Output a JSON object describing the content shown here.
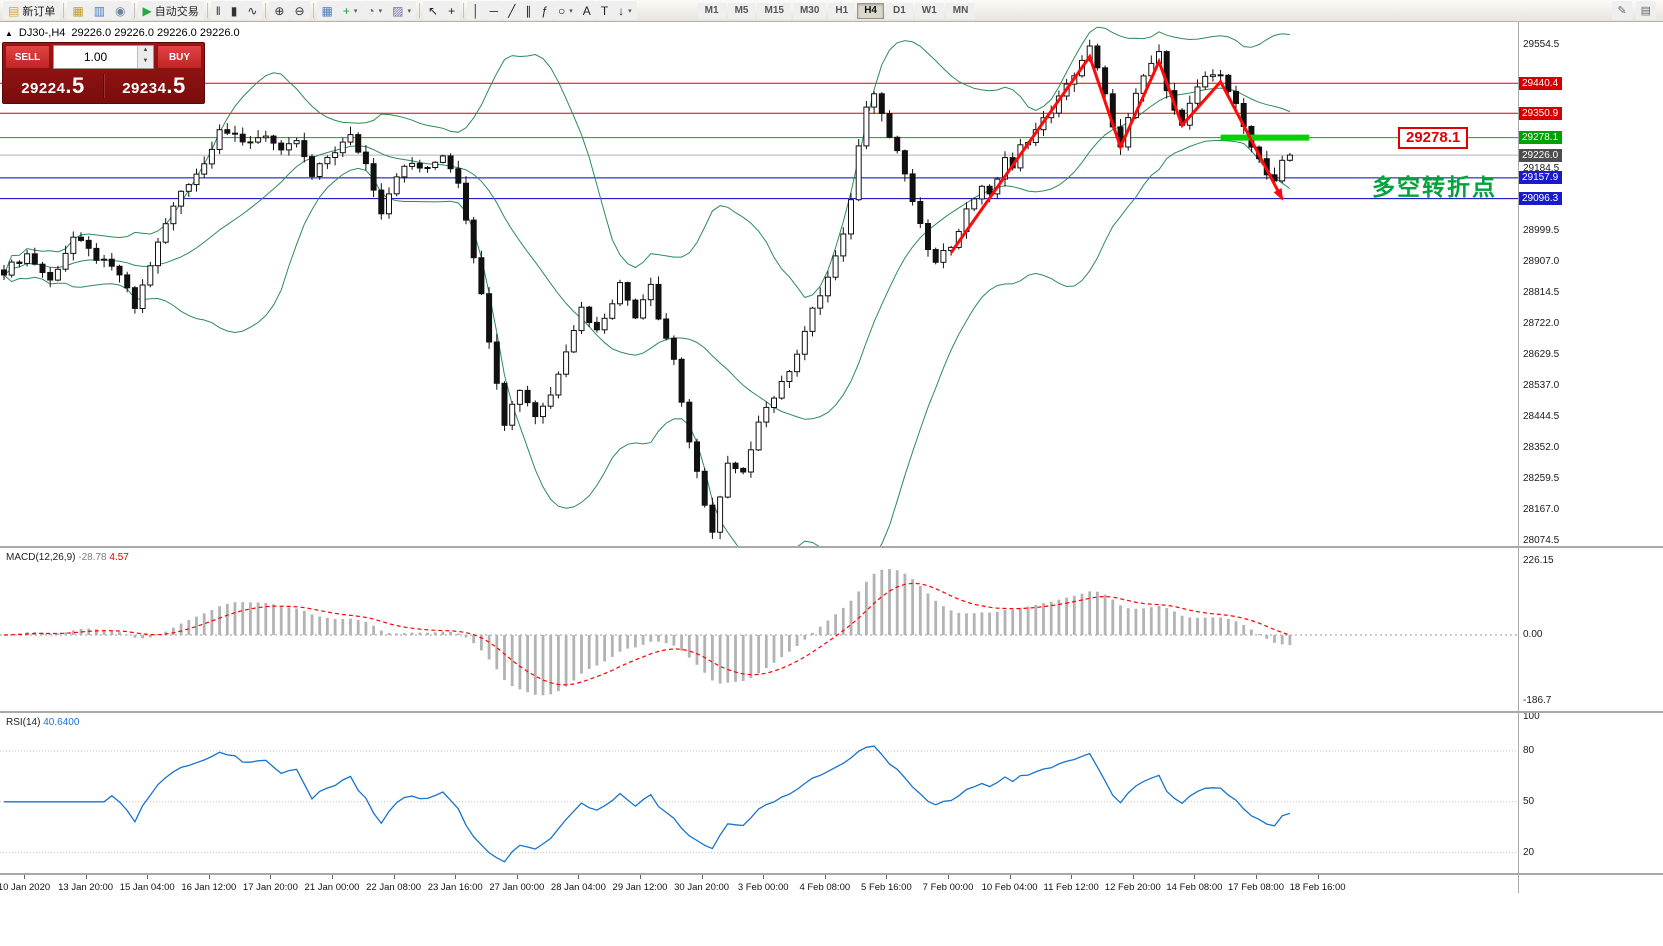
{
  "toolbar": {
    "groups": [
      [
        {
          "name": "new-order-button",
          "glyph": "▤",
          "glyph_color": "#d9a62e",
          "label": "新订单"
        }
      ],
      [
        {
          "name": "charts-icon",
          "glyph": "▦",
          "glyph_color": "#c59a22"
        },
        {
          "name": "market-watch-icon",
          "glyph": "▥",
          "glyph_color": "#4a7ebb"
        },
        {
          "name": "data-window-icon",
          "glyph": "◉",
          "glyph_color": "#6f83a0"
        }
      ],
      [
        {
          "name": "autotrading-button",
          "glyph": "▶",
          "glyph_color": "#27a844",
          "label": "自动交易"
        }
      ],
      [
        {
          "name": "bar-chart-icon",
          "glyph": "‖",
          "glyph_color": "#333333"
        },
        {
          "name": "candlestick-chart-icon",
          "glyph": "▮",
          "glyph_color": "#333333"
        },
        {
          "name": "line-chart-icon",
          "glyph": "∿",
          "glyph_color": "#333333"
        }
      ],
      [
        {
          "name": "zoom-in-icon",
          "glyph": "⊕",
          "glyph_color": "#333333"
        },
        {
          "name": "zoom-out-icon",
          "glyph": "⊖",
          "glyph_color": "#333333"
        }
      ],
      [
        {
          "name": "tile-windows-icon",
          "glyph": "▦",
          "glyph_color": "#4a7ebb"
        },
        {
          "name": "indicators-icon",
          "glyph": "+",
          "glyph_color": "#1e9e3e",
          "caret": true
        },
        {
          "name": "periods-icon",
          "glyph": "◔",
          "glyph_color": "#3a6fb0",
          "caret": true
        },
        {
          "name": "templates-icon",
          "glyph": "▨",
          "glyph_color": "#7a6ab0",
          "caret": true
        }
      ],
      [
        {
          "name": "cursor-icon",
          "glyph": "↖",
          "glyph_color": "#222222"
        },
        {
          "name": "crosshair-icon",
          "glyph": "+",
          "glyph_color": "#222222"
        }
      ],
      [
        {
          "name": "vertical-line-icon",
          "glyph": "│",
          "glyph_color": "#222222"
        },
        {
          "name": "horizontal-line-icon",
          "glyph": "─",
          "glyph_color": "#222222"
        },
        {
          "name": "trendline-icon",
          "glyph": "╱",
          "glyph_color": "#222222"
        },
        {
          "name": "channel-icon",
          "glyph": "∥",
          "glyph_color": "#222222"
        },
        {
          "name": "fibonacci-icon",
          "glyph": "ƒ",
          "glyph_color": "#222222"
        },
        {
          "name": "shapes-icon",
          "glyph": "○",
          "glyph_color": "#222222",
          "caret": true
        },
        {
          "name": "text-icon",
          "glyph": "A",
          "glyph_color": "#222222"
        },
        {
          "name": "label-icon",
          "glyph": "T",
          "glyph_color": "#222222"
        },
        {
          "name": "arrows-icon",
          "glyph": "↓",
          "glyph_color": "#222222",
          "caret": true
        }
      ]
    ],
    "timeframes": [
      "M1",
      "M5",
      "M15",
      "M30",
      "H1",
      "H4",
      "D1",
      "W1",
      "MN"
    ],
    "active_timeframe": "H4",
    "right_icons": [
      {
        "name": "edit-icon",
        "glyph": "✎"
      },
      {
        "name": "dock-panel-icon",
        "glyph": "▤"
      }
    ]
  },
  "header": {
    "collapse_glyph": "▲",
    "symbol_tf": "DJ30-,H4"
  },
  "oct": {
    "sell_label": "SELL",
    "buy_label": "BUY",
    "volume": "1.00",
    "sell_price_main": "29224",
    "sell_price_pip": ".5",
    "buy_price_main": "29234",
    "buy_price_pip": ".5",
    "spin_up": "▲",
    "spin_down": "▼"
  },
  "chart_data": {
    "type": "candlestick",
    "symbol": "DJ30-",
    "timeframe": "H4",
    "ohlc_header": "29226.0 29226.0 29226.0 29226.0",
    "bars": 168,
    "last_close": 29226.0,
    "price_path": [
      [
        0,
        28880
      ],
      [
        3,
        28930
      ],
      [
        6,
        28850
      ],
      [
        9,
        28980
      ],
      [
        12,
        28920
      ],
      [
        15,
        28870
      ],
      [
        17,
        28770
      ],
      [
        19,
        28900
      ],
      [
        21,
        29020
      ],
      [
        23,
        29120
      ],
      [
        26,
        29200
      ],
      [
        28,
        29310
      ],
      [
        31,
        29260
      ],
      [
        34,
        29290
      ],
      [
        36,
        29230
      ],
      [
        38,
        29270
      ],
      [
        40,
        29160
      ],
      [
        42,
        29220
      ],
      [
        45,
        29280
      ],
      [
        47,
        29200
      ],
      [
        49,
        29060
      ],
      [
        51,
        29170
      ],
      [
        53,
        29200
      ],
      [
        55,
        29180
      ],
      [
        57,
        29230
      ],
      [
        59,
        29150
      ],
      [
        61,
        28930
      ],
      [
        63,
        28680
      ],
      [
        65,
        28430
      ],
      [
        67,
        28530
      ],
      [
        69,
        28450
      ],
      [
        71,
        28510
      ],
      [
        73,
        28650
      ],
      [
        75,
        28770
      ],
      [
        77,
        28700
      ],
      [
        80,
        28840
      ],
      [
        82,
        28750
      ],
      [
        84,
        28850
      ],
      [
        85,
        28740
      ],
      [
        87,
        28620
      ],
      [
        89,
        28360
      ],
      [
        91,
        28190
      ],
      [
        92,
        28100
      ],
      [
        94,
        28300
      ],
      [
        96,
        28270
      ],
      [
        98,
        28440
      ],
      [
        101,
        28540
      ],
      [
        103,
        28640
      ],
      [
        105,
        28760
      ],
      [
        107,
        28860
      ],
      [
        109,
        28980
      ],
      [
        110,
        29100
      ],
      [
        111,
        29250
      ],
      [
        112,
        29380
      ],
      [
        113,
        29420
      ],
      [
        114,
        29350
      ],
      [
        115,
        29280
      ],
      [
        116,
        29240
      ],
      [
        117,
        29160
      ],
      [
        118,
        29090
      ],
      [
        119,
        29010
      ],
      [
        120,
        28950
      ],
      [
        121,
        28900
      ],
      [
        122,
        28930
      ],
      [
        123,
        28960
      ],
      [
        125,
        29060
      ],
      [
        127,
        29140
      ],
      [
        128,
        29100
      ],
      [
        130,
        29220
      ],
      [
        131,
        29180
      ],
      [
        132,
        29250
      ],
      [
        134,
        29300
      ],
      [
        136,
        29360
      ],
      [
        138,
        29430
      ],
      [
        140,
        29510
      ],
      [
        141,
        29545
      ],
      [
        142,
        29480
      ],
      [
        143,
        29400
      ],
      [
        144,
        29320
      ],
      [
        145,
        29245
      ],
      [
        146,
        29330
      ],
      [
        147,
        29400
      ],
      [
        148,
        29460
      ],
      [
        149,
        29500
      ],
      [
        150,
        29525
      ],
      [
        151,
        29430
      ],
      [
        152,
        29370
      ],
      [
        153,
        29310
      ],
      [
        154,
        29380
      ],
      [
        155,
        29420
      ],
      [
        156,
        29450
      ],
      [
        157,
        29465
      ],
      [
        158,
        29470
      ],
      [
        159,
        29420
      ],
      [
        160,
        29370
      ],
      [
        161,
        29310
      ],
      [
        162,
        29260
      ],
      [
        163,
        29215
      ],
      [
        164,
        29175
      ],
      [
        165,
        29150
      ],
      [
        166,
        29205
      ],
      [
        167,
        29226
      ]
    ],
    "price_axis": {
      "grid_top_price": 29554.5,
      "grid_step": 92.5,
      "grid_labels": [
        "29554.5",
        "29462.0",
        "29369.5",
        "29277.0",
        "29184.5",
        "29092.0",
        "28999.5",
        "28907.0",
        "28814.5",
        "28722.0",
        "28629.5",
        "28537.0",
        "28444.5",
        "28352.0",
        "28259.5",
        "28167.0",
        "28074.5"
      ]
    },
    "markers": [
      {
        "text": "29440.4",
        "price": 29440.4,
        "bg": "#d40000"
      },
      {
        "text": "29350.9",
        "price": 29350.9,
        "bg": "#d40000"
      },
      {
        "text": "29278.1",
        "price": 29278.1,
        "bg": "#00a000"
      },
      {
        "text": "29226.0",
        "price": 29226.0,
        "bg": "#4d4d4d"
      },
      {
        "text": "29157.9",
        "price": 29157.9,
        "bg": "#1a1acd"
      },
      {
        "text": "29096.3",
        "price": 29096.3,
        "bg": "#1a1acd"
      }
    ],
    "hlines": [
      {
        "price": 29440.4,
        "color": "#e00000",
        "width": 1
      },
      {
        "price": 29350.9,
        "color": "#e00000",
        "width": 1
      },
      {
        "price": 29278.1,
        "color": "#00b000",
        "width": 1
      },
      {
        "price": 29226.0,
        "color": "#b0b0b0",
        "width": 1
      },
      {
        "price": 29157.9,
        "color": "#0000bb",
        "width": 1
      },
      {
        "price": 29096.3,
        "color": "#0000bb",
        "width": 1
      }
    ],
    "bollinger": {
      "period": 20,
      "deviation": 2,
      "color": "#2E8B57"
    },
    "candle_colors": {
      "bull": "#ffffff",
      "bear": "#111111",
      "outline": "#111111"
    },
    "annotations": {
      "support_segment": {
        "bar_start": 158,
        "bar_end": 169.5,
        "price": 29278.1,
        "color": "#00d300",
        "width": 6
      },
      "zigzag": {
        "color": "#ff0a0a",
        "width": 3,
        "points": [
          [
            123,
            28935
          ],
          [
            141,
            29520
          ],
          [
            145,
            29250
          ],
          [
            150,
            29505
          ],
          [
            153,
            29315
          ],
          [
            158,
            29445
          ],
          [
            166,
            29095
          ]
        ]
      },
      "price_label": {
        "text": "29278.1",
        "color": "#e00000"
      },
      "cn_label": {
        "text": "多空转折点",
        "color": "#00A33C"
      }
    },
    "time_labels": [
      "10 Jan 2020",
      "13 Jan 20:00",
      "15 Jan 04:00",
      "16 Jan 12:00",
      "17 Jan 20:00",
      "21 Jan 00:00",
      "22 Jan 08:00",
      "23 Jan 16:00",
      "27 Jan 00:00",
      "28 Jan 04:00",
      "29 Jan 12:00",
      "30 Jan 20:00",
      "3 Feb 00:00",
      "4 Feb 08:00",
      "5 Feb 16:00",
      "7 Feb 00:00",
      "10 Feb 04:00",
      "11 Feb 12:00",
      "12 Feb 20:00",
      "14 Feb 08:00",
      "17 Feb 08:00",
      "18 Feb 16:00"
    ],
    "macd": {
      "title": "MACD(12,26,9)",
      "value_main": "-28.78",
      "value_signal": "4.57",
      "axis_labels": [
        "226.15",
        "0.00",
        "-186.7"
      ],
      "fast": 12,
      "slow": 26,
      "signal": 9,
      "hist_color": "#b3b3b3",
      "signal_color": "#ff0000"
    },
    "rsi": {
      "title": "RSI(14)",
      "value": "40.6400",
      "axis_labels": [
        "100",
        "80",
        "50",
        "20"
      ],
      "levels": [
        80,
        50,
        20
      ],
      "period": 14,
      "color": "#1874CD"
    }
  }
}
